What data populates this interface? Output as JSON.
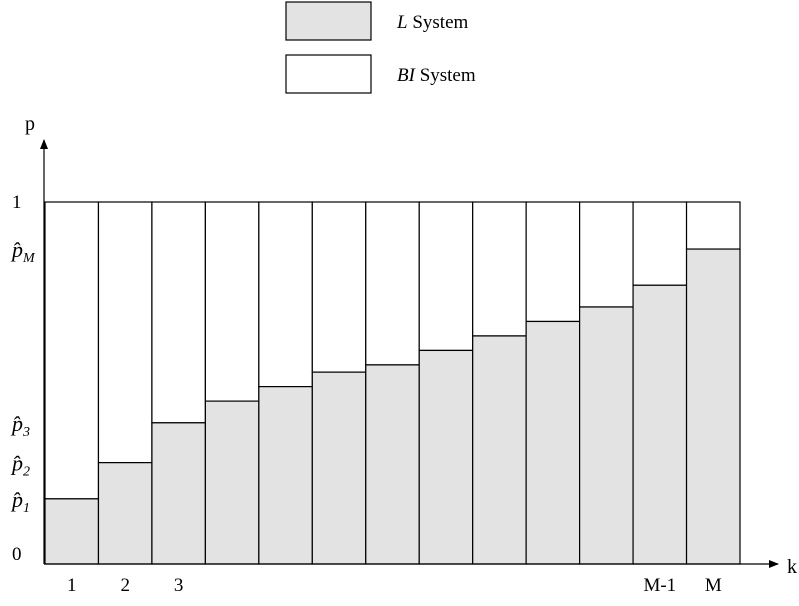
{
  "chart_data": {
    "type": "bar",
    "stacked": true,
    "xlabel": "k",
    "ylabel": "p",
    "ylim": [
      0,
      1.06
    ],
    "grid": false,
    "legend_placement": "top-center",
    "colors": {
      "L": "#e3e3e3",
      "BI": "#ffffff",
      "edge": "#000000"
    },
    "categories": [
      "1",
      "2",
      "3",
      "",
      "",
      "",
      "",
      "",
      "",
      "",
      "",
      "M-1",
      "M"
    ],
    "series": [
      {
        "name": "L System",
        "values": [
          0.18,
          0.28,
          0.39,
          0.45,
          0.49,
          0.53,
          0.55,
          0.59,
          0.63,
          0.67,
          0.71,
          0.77,
          0.87
        ]
      },
      {
        "name": "BI System",
        "values": [
          0.82,
          0.72,
          0.61,
          0.55,
          0.51,
          0.47,
          0.45,
          0.41,
          0.37,
          0.33,
          0.29,
          0.23,
          0.13
        ]
      }
    ],
    "y_labels": [
      {
        "value": 0,
        "base": "0",
        "sub": ""
      },
      {
        "value": 0.18,
        "base": "p̂",
        "sub": "1"
      },
      {
        "value": 0.28,
        "base": "p̂",
        "sub": "2"
      },
      {
        "value": 0.39,
        "base": "p̂",
        "sub": "3"
      },
      {
        "value": 0.87,
        "base": "p̂",
        "sub": "M"
      },
      {
        "value": 1,
        "base": "1",
        "sub": ""
      }
    ],
    "legend": [
      {
        "series": 0,
        "italic": "L",
        "text": " System"
      },
      {
        "series": 1,
        "italic": "BI",
        "text": " System"
      }
    ]
  }
}
